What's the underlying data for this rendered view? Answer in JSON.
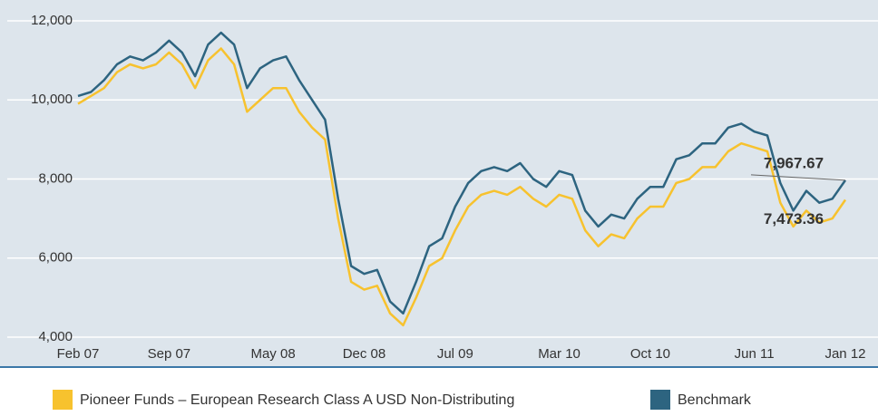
{
  "chart_data": {
    "type": "line",
    "x": [
      "Feb 07",
      "Mar 07",
      "Apr 07",
      "May 07",
      "Jun 07",
      "Jul 07",
      "Aug 07",
      "Sep 07",
      "Oct 07",
      "Nov 07",
      "Dec 07",
      "Jan 08",
      "Feb 08",
      "Mar 08",
      "Apr 08",
      "May 08",
      "Jun 08",
      "Jul 08",
      "Aug 08",
      "Sep 08",
      "Oct 08",
      "Nov 08",
      "Dec 08",
      "Jan 09",
      "Feb 09",
      "Mar 09",
      "Apr 09",
      "May 09",
      "Jun 09",
      "Jul 09",
      "Aug 09",
      "Sep 09",
      "Oct 09",
      "Nov 09",
      "Dec 09",
      "Jan 10",
      "Feb 10",
      "Mar 10",
      "Apr 10",
      "May 10",
      "Jun 10",
      "Jul 10",
      "Aug 10",
      "Sep 10",
      "Oct 10",
      "Nov 10",
      "Dec 10",
      "Jan 11",
      "Feb 11",
      "Mar 11",
      "Apr 11",
      "May 11",
      "Jun 11",
      "Jul 11",
      "Aug 11",
      "Sep 11",
      "Oct 11",
      "Nov 11",
      "Dec 11",
      "Jan 12"
    ],
    "xticks": [
      "Feb 07",
      "Sep 07",
      "May 08",
      "Dec 08",
      "Jul 09",
      "Mar 10",
      "Oct 10",
      "Jun 11",
      "Jan 12"
    ],
    "ylim": [
      4000,
      12000
    ],
    "yticks": [
      {
        "value": 4000,
        "label": "4,000"
      },
      {
        "value": 6000,
        "label": "6,000"
      },
      {
        "value": 8000,
        "label": "8,000"
      },
      {
        "value": 10000,
        "label": "10,000"
      },
      {
        "value": 12000,
        "label": "12,000"
      }
    ],
    "grid": true,
    "series": [
      {
        "name": "Pioneer Funds – European Research Class A USD Non-Distributing",
        "color": "#f7c22e",
        "end_label": "7,473.36",
        "values": [
          9900,
          10100,
          10300,
          10700,
          10900,
          10800,
          10900,
          11200,
          10900,
          10300,
          11000,
          11300,
          10900,
          9700,
          10000,
          10300,
          10300,
          9700,
          9300,
          9000,
          7000,
          5400,
          5200,
          5300,
          4600,
          4300,
          5000,
          5800,
          6000,
          6700,
          7300,
          7600,
          7700,
          7600,
          7800,
          7500,
          7300,
          7600,
          7500,
          6700,
          6300,
          6600,
          6500,
          7000,
          7300,
          7300,
          7900,
          8000,
          8300,
          8300,
          8700,
          8900,
          8800,
          8700,
          7400,
          6800,
          7200,
          6900,
          7000,
          7473.36
        ]
      },
      {
        "name": "Benchmark",
        "color": "#2d6480",
        "end_label": "7,967.67",
        "values": [
          10100,
          10200,
          10500,
          10900,
          11100,
          11000,
          11200,
          11500,
          11200,
          10600,
          11400,
          11700,
          11400,
          10300,
          10800,
          11000,
          11100,
          10500,
          10000,
          9500,
          7500,
          5800,
          5600,
          5700,
          4900,
          4600,
          5400,
          6300,
          6500,
          7300,
          7900,
          8200,
          8300,
          8200,
          8400,
          8000,
          7800,
          8200,
          8100,
          7200,
          6800,
          7100,
          7000,
          7500,
          7800,
          7800,
          8500,
          8600,
          8900,
          8900,
          9300,
          9400,
          9200,
          9100,
          7900,
          7200,
          7700,
          7400,
          7500,
          7967.67
        ]
      }
    ]
  }
}
